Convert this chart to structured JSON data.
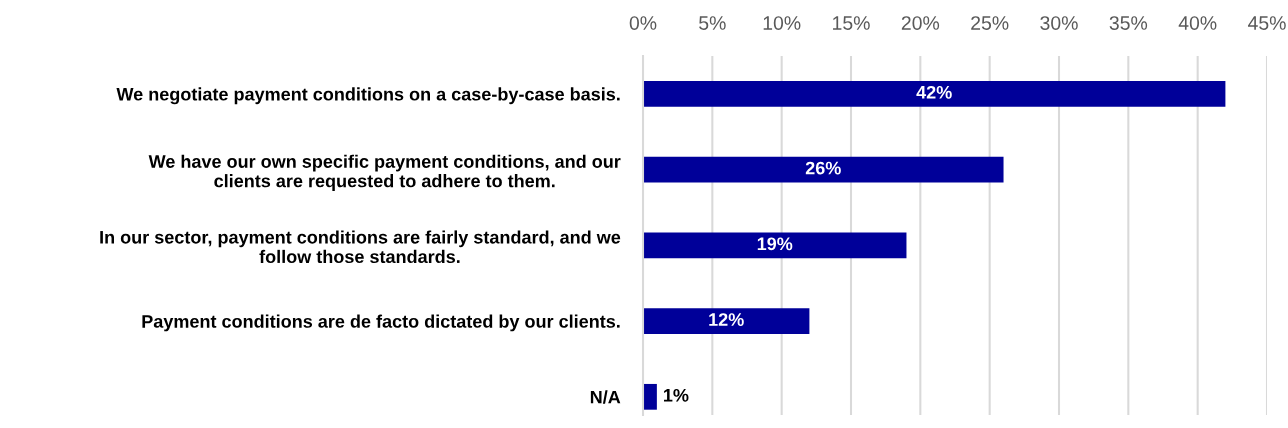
{
  "chart_data": {
    "type": "bar",
    "orientation": "horizontal",
    "categories": [
      "We negotiate payment conditions on a case-by-case basis.",
      "We have our own specific payment conditions, and our\nclients are requested to adhere to them.",
      "In our sector, payment conditions are fairly standard, and we\nfollow those standards.",
      "Payment conditions are de facto dictated by our clients.",
      "N/A"
    ],
    "values": [
      42,
      26,
      19,
      12,
      1
    ],
    "color": "#000099",
    "value_labels": [
      "42%",
      "26%",
      "19%",
      "12%",
      "1%"
    ],
    "xlim": [
      0,
      45
    ],
    "xticks": [
      {
        "value": 0,
        "label": "0%"
      },
      {
        "value": 5,
        "label": "5%"
      },
      {
        "value": 10,
        "label": "10%"
      },
      {
        "value": 15,
        "label": "15%"
      },
      {
        "value": 20,
        "label": "20%"
      },
      {
        "value": 25,
        "label": "25%"
      },
      {
        "value": 30,
        "label": "30%"
      },
      {
        "value": 35,
        "label": "35%"
      },
      {
        "value": 40,
        "label": "40%"
      },
      {
        "value": 45,
        "label": "45%"
      }
    ],
    "grid": "x"
  }
}
